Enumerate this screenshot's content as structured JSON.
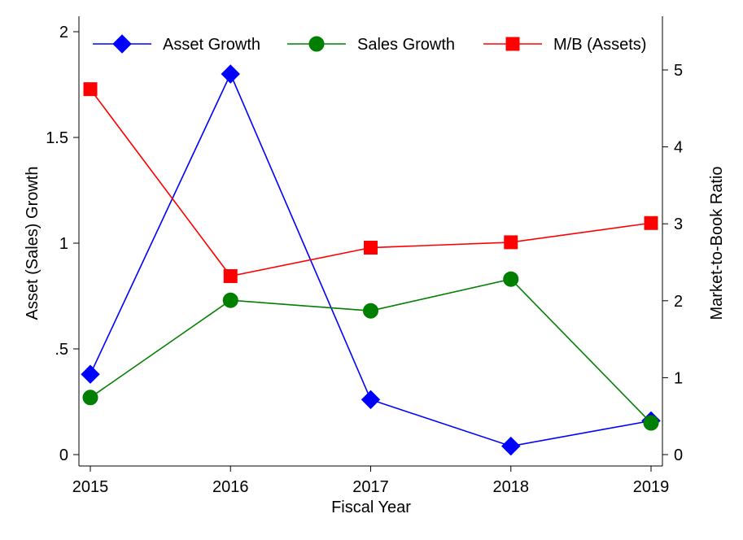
{
  "chart_data": {
    "type": "line",
    "xlabel": "Fiscal Year",
    "ylabel_left": "Asset (Sales) Growth",
    "ylabel_right": "Market-to-Book Ratio",
    "x": [
      2015,
      2016,
      2017,
      2018,
      2019
    ],
    "x_tick_labels": [
      "2015",
      "2016",
      "2017",
      "2018",
      "2019"
    ],
    "ylim_left": [
      0,
      2
    ],
    "ylim_right": [
      0,
      5.5
    ],
    "y_ticks_left": [
      {
        "value": 0,
        "label": "0"
      },
      {
        "value": 0.5,
        "label": ".5"
      },
      {
        "value": 1,
        "label": "1"
      },
      {
        "value": 1.5,
        "label": "1.5"
      },
      {
        "value": 2,
        "label": "2"
      }
    ],
    "y_ticks_right": [
      {
        "value": 0,
        "label": "0"
      },
      {
        "value": 1,
        "label": "1"
      },
      {
        "value": 2,
        "label": "2"
      },
      {
        "value": 3,
        "label": "3"
      },
      {
        "value": 4,
        "label": "4"
      },
      {
        "value": 5,
        "label": "5"
      }
    ],
    "grid": false,
    "legend_position": "top",
    "series": [
      {
        "name": "Asset Growth",
        "axis": "left",
        "color": "#0000ff",
        "marker": "diamond",
        "values": [
          0.38,
          1.8,
          0.26,
          0.04,
          0.16
        ]
      },
      {
        "name": "Sales Growth",
        "axis": "left",
        "color": "#007f00",
        "marker": "circle",
        "values": [
          0.27,
          0.73,
          0.68,
          0.83,
          0.15
        ]
      },
      {
        "name": "M/B (Assets)",
        "axis": "right",
        "color": "#ff0000",
        "marker": "square",
        "values": [
          4.75,
          2.32,
          2.69,
          2.76,
          3.01
        ]
      }
    ]
  }
}
